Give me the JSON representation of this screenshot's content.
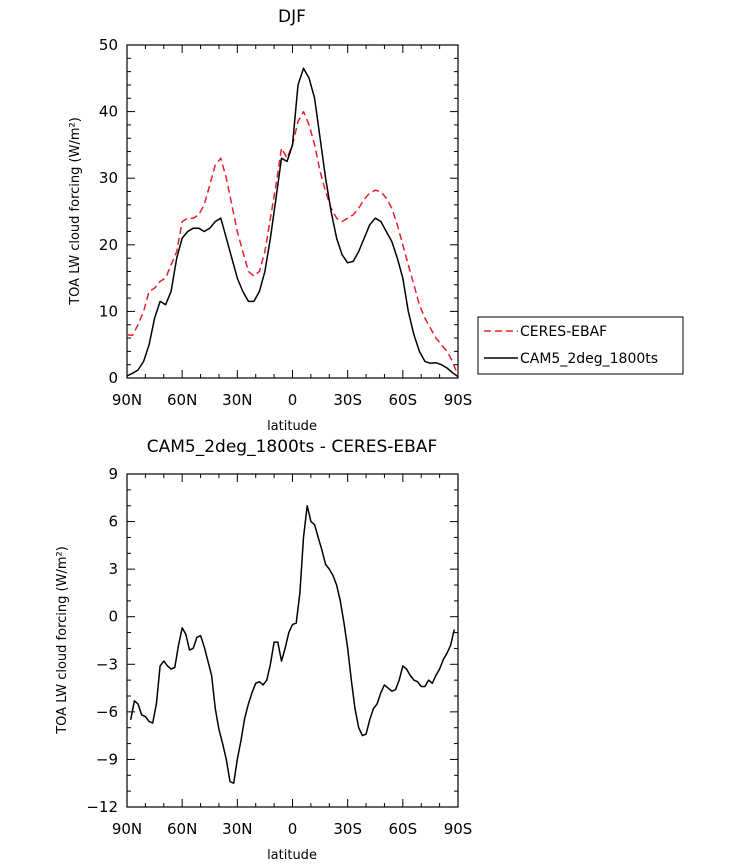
{
  "chart_data": [
    {
      "type": "line",
      "title": "DJF",
      "xlabel": "latitude",
      "ylabel": "TOA LW cloud forcing (W/m²)",
      "x_ticks": [
        -90,
        -60,
        -30,
        0,
        30,
        60,
        90
      ],
      "x_tick_labels": [
        "90N",
        "60N",
        "30N",
        "0",
        "30S",
        "60S",
        "90S"
      ],
      "xlim": [
        -90,
        90
      ],
      "ylim": [
        0,
        50
      ],
      "y_ticks": [
        0,
        10,
        20,
        30,
        40,
        50
      ],
      "y_tick_labels": [
        "0",
        "10",
        "20",
        "30",
        "40",
        "50"
      ],
      "legend_position": "right",
      "series": [
        {
          "name": "CERES-EBAF",
          "color": "#e8202a",
          "dash": true,
          "x": [
            -90,
            -87,
            -84,
            -81,
            -78,
            -75,
            -72,
            -69,
            -66,
            -63,
            -60,
            -57,
            -54,
            -51,
            -48,
            -45,
            -42,
            -39,
            -36,
            -33,
            -30,
            -27,
            -24,
            -21,
            -18,
            -15,
            -12,
            -9,
            -6,
            -3,
            0,
            3,
            6,
            9,
            12,
            15,
            18,
            21,
            24,
            27,
            30,
            33,
            36,
            39,
            42,
            45,
            48,
            51,
            54,
            57,
            60,
            63,
            66,
            69,
            72,
            75,
            78,
            81,
            84,
            87,
            90
          ],
          "y": [
            6.5,
            6.4,
            8,
            10,
            13,
            13.5,
            14.5,
            15,
            17,
            19,
            23.5,
            24,
            24,
            24.5,
            26,
            29,
            32,
            33,
            30,
            26,
            22,
            19,
            16,
            15.3,
            16,
            19,
            24,
            29,
            34.5,
            33,
            35,
            38.5,
            40,
            38,
            35,
            31,
            28,
            25.5,
            24,
            23.5,
            24,
            24.5,
            25.5,
            26.8,
            27.8,
            28.2,
            28,
            27,
            25.5,
            23,
            20,
            17,
            14,
            11,
            9,
            7.5,
            6,
            5,
            4,
            2.5,
            0.3
          ]
        },
        {
          "name": "CAM5_2deg_1800ts",
          "color": "#000000",
          "dash": false,
          "x": [
            -90,
            -87,
            -84,
            -81,
            -78,
            -75,
            -72,
            -69,
            -66,
            -63,
            -60,
            -57,
            -54,
            -51,
            -48,
            -45,
            -42,
            -39,
            -36,
            -33,
            -30,
            -27,
            -24,
            -21,
            -18,
            -15,
            -12,
            -9,
            -6,
            -3,
            0,
            3,
            6,
            9,
            12,
            15,
            18,
            21,
            24,
            27,
            30,
            33,
            36,
            39,
            42,
            45,
            48,
            51,
            54,
            57,
            60,
            63,
            66,
            69,
            72,
            75,
            78,
            81,
            84,
            87,
            90
          ],
          "y": [
            0.3,
            0.7,
            1.2,
            2.5,
            5,
            9,
            11.5,
            11,
            13,
            18,
            21,
            22,
            22.5,
            22.5,
            22,
            22.5,
            23.5,
            24,
            21,
            18,
            15,
            13,
            11.5,
            11.5,
            13,
            16,
            21,
            27,
            33,
            32.5,
            35,
            44,
            46.5,
            45,
            42,
            36,
            30,
            25,
            21,
            18.5,
            17.3,
            17.5,
            19,
            21,
            23,
            24,
            23.5,
            22,
            20.5,
            18,
            15,
            10,
            6.5,
            4,
            2.5,
            2.2,
            2.3,
            2,
            1.5,
            0.8,
            0.2
          ]
        }
      ]
    },
    {
      "type": "line",
      "title": "CAM5_2deg_1800ts - CERES-EBAF",
      "xlabel": "latitude",
      "ylabel": "TOA LW cloud forcing (W/m²)",
      "x_ticks": [
        -90,
        -60,
        -30,
        0,
        30,
        60,
        90
      ],
      "x_tick_labels": [
        "90N",
        "60N",
        "30N",
        "0",
        "30S",
        "60S",
        "90S"
      ],
      "xlim": [
        -90,
        90
      ],
      "ylim": [
        -12,
        9
      ],
      "y_ticks": [
        -12,
        -9,
        -6,
        -3,
        0,
        3,
        6,
        9
      ],
      "y_tick_labels": [
        "−12",
        "−9",
        "−6",
        "−3",
        "0",
        "3",
        "6",
        "9"
      ],
      "series": [
        {
          "name": "CAM5_2deg_1800ts - CERES-EBAF",
          "color": "#000000",
          "dash": false,
          "x": [
            -88,
            -86,
            -84,
            -82,
            -80,
            -78,
            -76,
            -74,
            -72,
            -70,
            -68,
            -66,
            -64,
            -62,
            -60,
            -58,
            -56,
            -54,
            -52,
            -50,
            -48,
            -46,
            -44,
            -42,
            -40,
            -38,
            -36,
            -34,
            -32,
            -30,
            -28,
            -26,
            -24,
            -22,
            -20,
            -18,
            -16,
            -14,
            -12,
            -10,
            -8,
            -6,
            -4,
            -2,
            0,
            2,
            4,
            6,
            8,
            10,
            12,
            14,
            16,
            18,
            20,
            22,
            24,
            26,
            28,
            30,
            32,
            34,
            36,
            38,
            40,
            42,
            44,
            46,
            48,
            50,
            52,
            54,
            56,
            58,
            60,
            62,
            64,
            66,
            68,
            70,
            72,
            74,
            76,
            78,
            80,
            82,
            84,
            86,
            88
          ],
          "y": [
            -6.5,
            -5.3,
            -5.5,
            -6.2,
            -6.3,
            -6.6,
            -6.7,
            -5.5,
            -3.1,
            -2.8,
            -3.1,
            -3.3,
            -3.2,
            -1.8,
            -0.7,
            -1.1,
            -2.1,
            -2,
            -1.3,
            -1.2,
            -1.9,
            -2.8,
            -3.7,
            -5.8,
            -7.1,
            -8.0,
            -9.0,
            -10.4,
            -10.5,
            -9.0,
            -7.8,
            -6.4,
            -5.5,
            -4.8,
            -4.2,
            -4.1,
            -4.3,
            -4.0,
            -3.0,
            -1.6,
            -1.6,
            -2.8,
            -2,
            -1,
            -0.5,
            -0.4,
            1.5,
            5,
            7,
            6,
            5.8,
            5,
            4.2,
            3.3,
            3,
            2.6,
            2,
            1,
            -0.4,
            -2,
            -4,
            -5.8,
            -7.0,
            -7.5,
            -7.4,
            -6.5,
            -5.8,
            -5.5,
            -4.8,
            -4.3,
            -4.5,
            -4.7,
            -4.6,
            -4.0,
            -3.1,
            -3.3,
            -3.7,
            -4.0,
            -4.1,
            -4.4,
            -4.4,
            -4.0,
            -4.2,
            -3.7,
            -3.3,
            -2.7,
            -2.3,
            -1.8,
            -0.8
          ]
        }
      ]
    }
  ]
}
